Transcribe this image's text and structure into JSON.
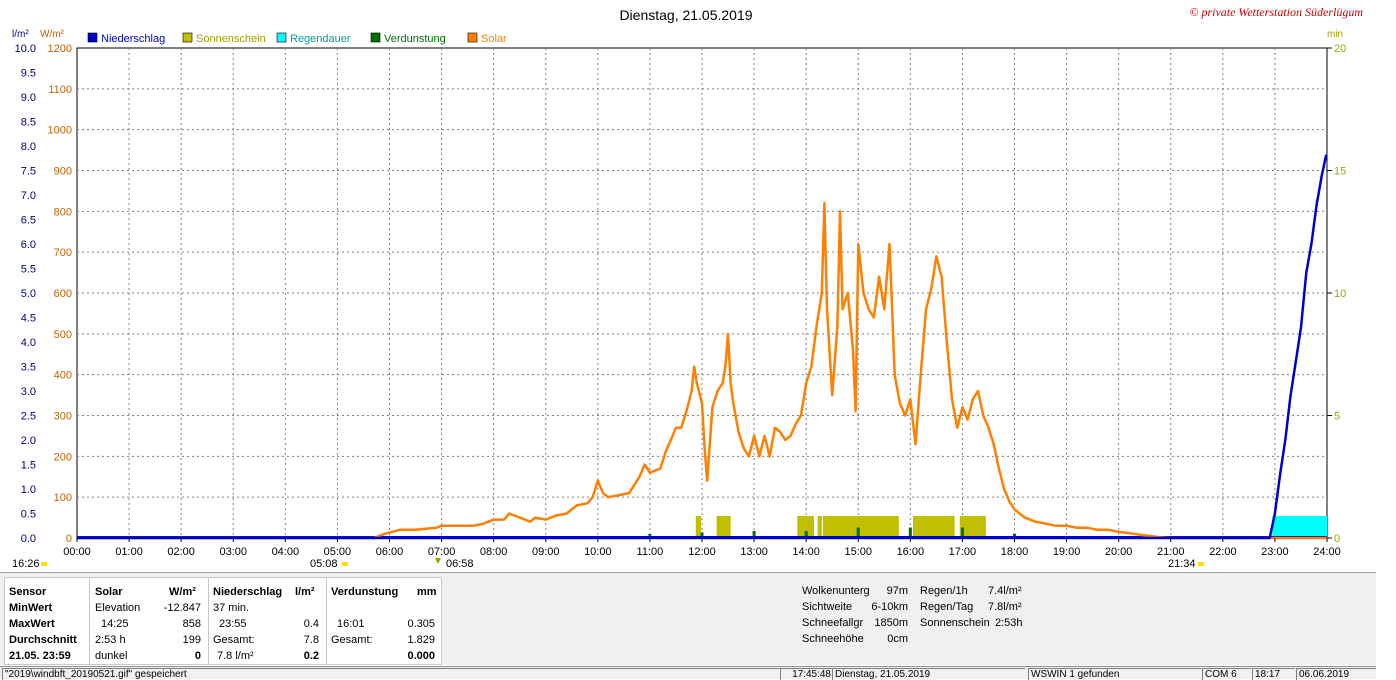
{
  "chart_data": {
    "type": "line",
    "title": "Dienstag, 21.05.2019",
    "watermark": "© private Wetterstation Süderlügum",
    "left_axis_units": [
      "l/m²",
      "W/m²"
    ],
    "right_axis_unit": "min",
    "legend": [
      {
        "name": "Niederschlag",
        "color": "#0000cc"
      },
      {
        "name": "Sonnenschein",
        "color": "#c0c000"
      },
      {
        "name": "Regendauer",
        "color": "#00ffff"
      },
      {
        "name": "Verdunstung",
        "color": "#007000"
      },
      {
        "name": "Solar",
        "color": "#ff8000"
      }
    ],
    "x_ticks": [
      "00:00",
      "01:00",
      "02:00",
      "03:00",
      "04:00",
      "05:00",
      "06:00",
      "07:00",
      "08:00",
      "09:00",
      "10:00",
      "11:00",
      "12:00",
      "13:00",
      "14:00",
      "15:00",
      "16:00",
      "17:00",
      "18:00",
      "19:00",
      "20:00",
      "21:00",
      "22:00",
      "23:00",
      "24:00"
    ],
    "y_precip_ticks": [
      "0.0",
      "0.5",
      "1.0",
      "1.5",
      "2.0",
      "2.5",
      "3.0",
      "3.5",
      "4.0",
      "4.5",
      "5.0",
      "5.5",
      "6.0",
      "6.5",
      "7.0",
      "7.5",
      "8.0",
      "8.5",
      "9.0",
      "9.5",
      "10.0"
    ],
    "y_solar_ticks": [
      "0",
      "100",
      "200",
      "300",
      "400",
      "500",
      "600",
      "700",
      "800",
      "900",
      "1000",
      "1100",
      "1200"
    ],
    "y_right_ticks": [
      "0",
      "5",
      "10",
      "15",
      "20"
    ],
    "ylim_precip": [
      0,
      10
    ],
    "ylim_solar": [
      0,
      1200
    ],
    "ylim_minutes": [
      0,
      20
    ],
    "markers": {
      "twilight_start": "16:26",
      "sunrise": "05:08",
      "solar_noon_mark": "06:58",
      "sunset": "21:34"
    },
    "series": [
      {
        "name": "Solar",
        "unit": "W/m²",
        "points": [
          [
            0,
            0
          ],
          [
            5.7,
            0
          ],
          [
            5.9,
            10
          ],
          [
            6.2,
            20
          ],
          [
            6.5,
            20
          ],
          [
            6.9,
            25
          ],
          [
            7.0,
            30
          ],
          [
            7.3,
            30
          ],
          [
            7.6,
            30
          ],
          [
            7.8,
            35
          ],
          [
            8.0,
            45
          ],
          [
            8.2,
            45
          ],
          [
            8.3,
            60
          ],
          [
            8.5,
            50
          ],
          [
            8.7,
            40
          ],
          [
            8.8,
            50
          ],
          [
            9.0,
            45
          ],
          [
            9.2,
            55
          ],
          [
            9.4,
            60
          ],
          [
            9.6,
            80
          ],
          [
            9.8,
            85
          ],
          [
            9.9,
            100
          ],
          [
            10.0,
            140
          ],
          [
            10.1,
            110
          ],
          [
            10.2,
            100
          ],
          [
            10.4,
            105
          ],
          [
            10.6,
            110
          ],
          [
            10.8,
            150
          ],
          [
            10.9,
            180
          ],
          [
            11.0,
            160
          ],
          [
            11.2,
            170
          ],
          [
            11.3,
            210
          ],
          [
            11.4,
            240
          ],
          [
            11.5,
            270
          ],
          [
            11.6,
            270
          ],
          [
            11.7,
            310
          ],
          [
            11.8,
            360
          ],
          [
            11.85,
            420
          ],
          [
            11.9,
            380
          ],
          [
            12.0,
            330
          ],
          [
            12.05,
            220
          ],
          [
            12.1,
            140
          ],
          [
            12.2,
            320
          ],
          [
            12.3,
            360
          ],
          [
            12.4,
            380
          ],
          [
            12.45,
            420
          ],
          [
            12.5,
            500
          ],
          [
            12.55,
            380
          ],
          [
            12.6,
            330
          ],
          [
            12.7,
            260
          ],
          [
            12.8,
            220
          ],
          [
            12.9,
            200
          ],
          [
            13.0,
            250
          ],
          [
            13.1,
            200
          ],
          [
            13.2,
            250
          ],
          [
            13.3,
            200
          ],
          [
            13.4,
            270
          ],
          [
            13.5,
            260
          ],
          [
            13.6,
            240
          ],
          [
            13.7,
            250
          ],
          [
            13.8,
            280
          ],
          [
            13.9,
            300
          ],
          [
            14.0,
            380
          ],
          [
            14.1,
            420
          ],
          [
            14.2,
            520
          ],
          [
            14.3,
            600
          ],
          [
            14.35,
            820
          ],
          [
            14.4,
            560
          ],
          [
            14.5,
            350
          ],
          [
            14.6,
            520
          ],
          [
            14.65,
            800
          ],
          [
            14.7,
            560
          ],
          [
            14.8,
            600
          ],
          [
            14.9,
            460
          ],
          [
            14.95,
            310
          ],
          [
            15.0,
            720
          ],
          [
            15.1,
            600
          ],
          [
            15.2,
            560
          ],
          [
            15.3,
            540
          ],
          [
            15.4,
            640
          ],
          [
            15.5,
            560
          ],
          [
            15.6,
            720
          ],
          [
            15.7,
            400
          ],
          [
            15.8,
            330
          ],
          [
            15.9,
            300
          ],
          [
            16.0,
            340
          ],
          [
            16.1,
            230
          ],
          [
            16.2,
            400
          ],
          [
            16.3,
            560
          ],
          [
            16.4,
            610
          ],
          [
            16.5,
            690
          ],
          [
            16.6,
            640
          ],
          [
            16.7,
            480
          ],
          [
            16.8,
            340
          ],
          [
            16.9,
            270
          ],
          [
            17.0,
            320
          ],
          [
            17.1,
            290
          ],
          [
            17.2,
            340
          ],
          [
            17.3,
            360
          ],
          [
            17.4,
            300
          ],
          [
            17.5,
            270
          ],
          [
            17.6,
            230
          ],
          [
            17.7,
            170
          ],
          [
            17.8,
            120
          ],
          [
            17.9,
            90
          ],
          [
            18.0,
            70
          ],
          [
            18.2,
            50
          ],
          [
            18.4,
            40
          ],
          [
            18.6,
            35
          ],
          [
            18.8,
            30
          ],
          [
            19.0,
            30
          ],
          [
            19.2,
            25
          ],
          [
            19.4,
            25
          ],
          [
            19.6,
            20
          ],
          [
            19.8,
            20
          ],
          [
            20.0,
            15
          ],
          [
            20.2,
            12
          ],
          [
            20.4,
            8
          ],
          [
            20.6,
            5
          ],
          [
            20.8,
            2
          ],
          [
            21.0,
            0
          ],
          [
            24,
            0
          ]
        ]
      },
      {
        "name": "Niederschlag",
        "unit": "l/m²",
        "points": [
          [
            0,
            0
          ],
          [
            22.9,
            0
          ],
          [
            23.0,
            0.5
          ],
          [
            23.1,
            1.3
          ],
          [
            23.2,
            2.0
          ],
          [
            23.3,
            2.9
          ],
          [
            23.4,
            3.6
          ],
          [
            23.5,
            4.3
          ],
          [
            23.6,
            5.4
          ],
          [
            23.7,
            6.0
          ],
          [
            23.8,
            6.8
          ],
          [
            23.9,
            7.4
          ],
          [
            23.98,
            7.8
          ],
          [
            24,
            7.8
          ]
        ]
      },
      {
        "name": "Sonnenschein",
        "unit": "min",
        "intervals": [
          [
            11.88,
            11.98
          ],
          [
            12.28,
            12.55
          ],
          [
            13.83,
            14.15
          ],
          [
            14.22,
            14.3
          ],
          [
            14.32,
            15.78
          ],
          [
            16.05,
            16.85
          ],
          [
            16.95,
            17.45
          ]
        ]
      },
      {
        "name": "Regendauer",
        "unit": "min",
        "intervals": [
          [
            22.95,
            24.0
          ]
        ]
      },
      {
        "name": "Verdunstung",
        "unit": "mm",
        "spikes": [
          [
            11.0,
            0.05
          ],
          [
            12.0,
            0.08
          ],
          [
            13.0,
            0.1
          ],
          [
            14.0,
            0.1
          ],
          [
            15.0,
            0.15
          ],
          [
            16.0,
            0.15
          ],
          [
            17.0,
            0.15
          ],
          [
            18.0,
            0.06
          ]
        ]
      }
    ]
  },
  "stats": {
    "headers": {
      "sensor": "Sensor",
      "solar": "Solar",
      "solar_unit": "W/m²",
      "precip": "Niederschlag",
      "precip_unit": "l/m²",
      "evap": "Verdunstung",
      "evap_unit": "mm"
    },
    "row_labels": [
      "MinWert",
      "MaxWert",
      "Durchschnitt",
      "21.05. 23:59"
    ],
    "solar": [
      [
        "Elevation",
        "-12.847"
      ],
      [
        "14:25",
        "858"
      ],
      [
        "2:53 h",
        "199"
      ],
      [
        "dunkel",
        "0"
      ]
    ],
    "precip": [
      [
        "37 min.",
        ""
      ],
      [
        "23:55",
        "0.4"
      ],
      [
        "Gesamt:",
        "7.8"
      ],
      [
        "7.8 l/m²",
        "0.2"
      ]
    ],
    "evap": [
      [
        "",
        ""
      ],
      [
        "16:01",
        "0.305"
      ],
      [
        "Gesamt:",
        "1.829"
      ],
      [
        "",
        "0.000"
      ]
    ],
    "cloud": [
      [
        "Wolkenunterg",
        "97m"
      ],
      [
        "Sichtweite",
        "6-10km"
      ],
      [
        "Schneefallgr",
        "1850m"
      ],
      [
        "Schneehöhe",
        "0cm"
      ]
    ],
    "rain": [
      [
        "Regen/1h",
        "7.4l/m²"
      ],
      [
        "Regen/Tag",
        "7.8l/m²"
      ],
      [
        "Sonnenschein",
        "2:53h"
      ]
    ]
  },
  "statusbar": {
    "file": "\"2019\\windbft_20190521.gif\"  gespeichert",
    "time": "17:45:48",
    "date": "Dienstag, 21.05.2019",
    "wswin": "WSWIN 1 gefunden",
    "com": "COM 6",
    "clock": "18:17",
    "today": "06.06.2019"
  }
}
